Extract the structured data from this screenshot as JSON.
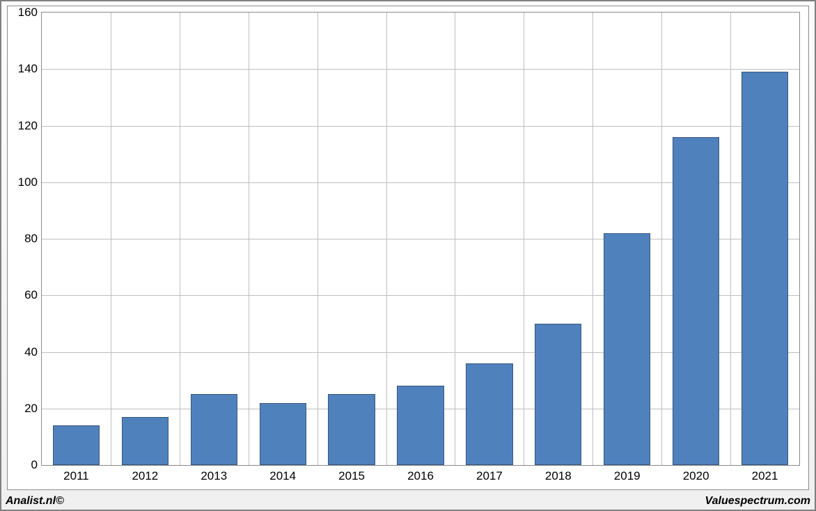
{
  "chart": {
    "type": "bar",
    "categories": [
      "2011",
      "2012",
      "2013",
      "2014",
      "2015",
      "2016",
      "2017",
      "2018",
      "2019",
      "2020",
      "2021"
    ],
    "values": [
      14,
      17,
      25,
      22,
      25,
      28,
      36,
      50,
      82,
      116,
      139
    ],
    "bar_color": "#4f81bd",
    "bar_border_color": "#37567b",
    "background_color": "#ffffff",
    "grid_color": "#bfbfbf",
    "axis_color": "#8a8a8a",
    "ylim": [
      0,
      160
    ],
    "ytick_step": 20,
    "yticks": [
      0,
      20,
      40,
      60,
      80,
      100,
      120,
      140,
      160
    ],
    "label_fontsize": 17,
    "label_color": "#000000",
    "bar_width_ratio": 0.68
  },
  "footer": {
    "left": "Analist.nl©",
    "right": "Valuespectrum.com"
  },
  "frame": {
    "outer_border_color": "#808080",
    "gradient_top": "#fdfdfd",
    "gradient_bottom": "#f0f0f0"
  }
}
